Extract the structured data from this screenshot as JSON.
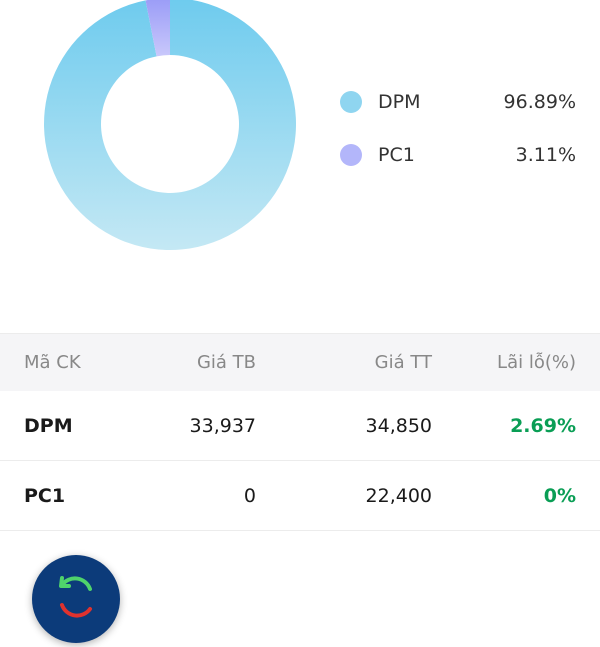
{
  "chart_data": {
    "type": "pie",
    "categories": [
      "DPM",
      "PC1"
    ],
    "values": [
      96.89,
      3.11
    ],
    "colors": [
      "#7dd0ee",
      "#a9a8f8"
    ]
  },
  "legend": [
    {
      "label": "DPM",
      "pct": "96.89%",
      "color": "#8fd5f0"
    },
    {
      "label": "PC1",
      "pct": "3.11%",
      "color": "#b3b6fa"
    }
  ],
  "table": {
    "headers": [
      "Mã CK",
      "Giá TB",
      "Giá TT",
      "Lãi lỗ(%)"
    ],
    "rows": [
      {
        "code": "DPM",
        "avg": "33,937",
        "market": "34,850",
        "pl": "2.69%"
      },
      {
        "code": "PC1",
        "avg": "0",
        "market": "22,400",
        "pl": "0%"
      }
    ]
  },
  "fab": {
    "icon": "refresh-icon"
  }
}
